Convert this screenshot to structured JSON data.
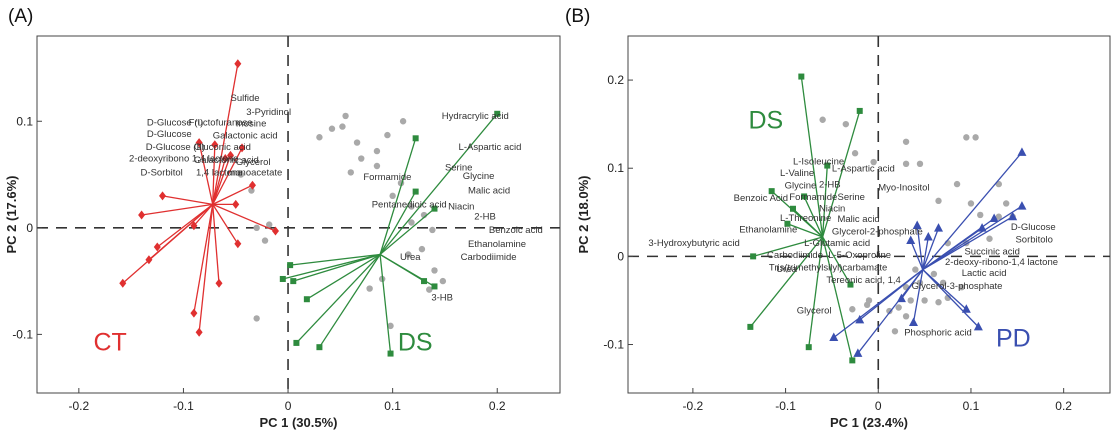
{
  "chart_data": [
    {
      "type": "scatter",
      "panel": "(A)",
      "xlabel": "PC 1 (30.5%)",
      "ylabel": "PC 2 (17.6%)",
      "xlim": [
        -0.24,
        0.26
      ],
      "ylim": [
        -0.155,
        0.18
      ],
      "xticks": [
        "-0.2",
        "-0.1",
        "0",
        "0.1",
        "0.2"
      ],
      "xtick_values": [
        -0.2,
        -0.1,
        0,
        0.1,
        0.2
      ],
      "yticks": [
        "0.1",
        "0",
        "-0.1"
      ],
      "ytick_values": [
        0.1,
        0,
        -0.1
      ],
      "reference_lines": "dashed at x=0 and y=0",
      "groups": [
        {
          "label": "CT",
          "color": "#e03030",
          "marker": "diamond",
          "centroid": [
            -0.072,
            0.022
          ],
          "points": [
            [
              -0.048,
              0.154
            ],
            [
              -0.085,
              0.08
            ],
            [
              -0.06,
              0.065
            ],
            [
              -0.044,
              0.075
            ],
            [
              -0.055,
              0.068
            ],
            [
              -0.07,
              0.078
            ],
            [
              -0.034,
              0.04
            ],
            [
              -0.05,
              0.022
            ],
            [
              -0.012,
              -0.003
            ],
            [
              -0.12,
              0.03
            ],
            [
              -0.14,
              0.012
            ],
            [
              -0.133,
              -0.03
            ],
            [
              -0.158,
              -0.052
            ],
            [
              -0.125,
              -0.018
            ],
            [
              -0.09,
              -0.08
            ],
            [
              -0.085,
              -0.098
            ],
            [
              -0.066,
              -0.052
            ],
            [
              -0.048,
              -0.015
            ],
            [
              -0.09,
              0.002
            ]
          ]
        },
        {
          "label": "DS",
          "color": "#2e8b3e",
          "marker": "square",
          "centroid": [
            0.088,
            -0.025
          ],
          "points": [
            [
              0.2,
              0.107
            ],
            [
              0.122,
              0.084
            ],
            [
              0.122,
              0.034
            ],
            [
              0.14,
              0.018
            ],
            [
              0.14,
              -0.055
            ],
            [
              0.13,
              -0.05
            ],
            [
              0.098,
              -0.118
            ],
            [
              0.03,
              -0.112
            ],
            [
              0.008,
              -0.108
            ],
            [
              0.018,
              -0.067
            ],
            [
              0.005,
              -0.05
            ],
            [
              -0.005,
              -0.048
            ],
            [
              0.002,
              -0.035
            ]
          ]
        }
      ],
      "observations_grey": [
        [
          0.03,
          0.085
        ],
        [
          0.042,
          0.093
        ],
        [
          0.055,
          0.105
        ],
        [
          0.066,
          0.08
        ],
        [
          0.085,
          0.072
        ],
        [
          0.07,
          0.065
        ],
        [
          0.052,
          0.095
        ],
        [
          0.095,
          0.087
        ],
        [
          0.11,
          0.1
        ],
        [
          0.085,
          0.058
        ],
        [
          0.06,
          0.052
        ],
        [
          0.1,
          0.03
        ],
        [
          0.108,
          0.042
        ],
        [
          0.118,
          0.02
        ],
        [
          0.118,
          0.005
        ],
        [
          0.13,
          0.012
        ],
        [
          0.138,
          -0.002
        ],
        [
          0.128,
          -0.02
        ],
        [
          0.115,
          -0.025
        ],
        [
          0.14,
          -0.04
        ],
        [
          0.148,
          -0.05
        ],
        [
          0.135,
          -0.058
        ],
        [
          0.09,
          -0.048
        ],
        [
          0.078,
          -0.057
        ],
        [
          0.098,
          -0.092
        ],
        [
          -0.03,
          0.0
        ],
        [
          -0.018,
          0.003
        ],
        [
          -0.022,
          -0.012
        ],
        [
          -0.035,
          0.035
        ],
        [
          -0.03,
          -0.085
        ],
        [
          -0.045,
          0.05
        ]
      ],
      "annotations": [
        {
          "text": "Sulfide",
          "x": -0.055,
          "y": 0.119
        },
        {
          "text": "3-Pyridinol",
          "x": -0.04,
          "y": 0.106
        },
        {
          "text": "D-Glucose (I)",
          "x": -0.135,
          "y": 0.096
        },
        {
          "text": "Fructofuranose",
          "x": -0.095,
          "y": 0.096
        },
        {
          "text": "Inosine",
          "x": -0.05,
          "y": 0.095
        },
        {
          "text": "D-Glucose",
          "x": -0.135,
          "y": 0.085
        },
        {
          "text": "D-Glucose (II)",
          "x": -0.136,
          "y": 0.073
        },
        {
          "text": "Gluconic acid",
          "x": -0.09,
          "y": 0.073
        },
        {
          "text": "Galactonic acid",
          "x": -0.072,
          "y": 0.084
        },
        {
          "text": "2-deoxyribono 1,4 lactone",
          "x": -0.152,
          "y": 0.062
        },
        {
          "text": "Galactonic acid",
          "x": -0.09,
          "y": 0.061
        },
        {
          "text": "Glycerol",
          "x": -0.05,
          "y": 0.059
        },
        {
          "text": "D-Sorbitol",
          "x": -0.141,
          "y": 0.049
        },
        {
          "text": "1,4 lactone",
          "x": -0.088,
          "y": 0.049
        },
        {
          "text": "monoacetate",
          "x": -0.058,
          "y": 0.049
        },
        {
          "text": "Hydracrylic acid",
          "x": 0.147,
          "y": 0.102
        },
        {
          "text": "L-Aspartic acid",
          "x": 0.163,
          "y": 0.073
        },
        {
          "text": "Serine",
          "x": 0.15,
          "y": 0.054
        },
        {
          "text": "Glycine",
          "x": 0.167,
          "y": 0.046
        },
        {
          "text": "Formamide",
          "x": 0.072,
          "y": 0.045
        },
        {
          "text": "Malic acid",
          "x": 0.172,
          "y": 0.032
        },
        {
          "text": "Pentanedioic acid",
          "x": 0.08,
          "y": 0.019
        },
        {
          "text": "Niacin",
          "x": 0.153,
          "y": 0.017
        },
        {
          "text": "2-HB",
          "x": 0.178,
          "y": 0.008
        },
        {
          "text": "Benzoic acid",
          "x": 0.192,
          "y": -0.005
        },
        {
          "text": "Ethanolamine",
          "x": 0.172,
          "y": -0.018
        },
        {
          "text": "Urea",
          "x": 0.107,
          "y": -0.03
        },
        {
          "text": "Carbodiimide",
          "x": 0.165,
          "y": -0.03
        },
        {
          "text": "3-HB",
          "x": 0.137,
          "y": -0.068
        }
      ],
      "group_labels": [
        {
          "text": "CT",
          "x": -0.186,
          "y": -0.115
        },
        {
          "text": "DS",
          "x": 0.105,
          "y": -0.115
        }
      ]
    },
    {
      "type": "scatter",
      "panel": "(B)",
      "xlabel": "PC 1 (23.4%)",
      "ylabel": "PC 2 (18.0%)",
      "xlim": [
        -0.27,
        0.25
      ],
      "ylim": [
        -0.155,
        0.25
      ],
      "xticks": [
        "-0.2",
        "-0.1",
        "0",
        "0.1",
        "0.2"
      ],
      "xtick_values": [
        -0.2,
        -0.1,
        0,
        0.1,
        0.2
      ],
      "yticks": [
        "0.2",
        "0.1",
        "0",
        "-0.1"
      ],
      "ytick_values": [
        0.2,
        0.1,
        0,
        -0.1
      ],
      "reference_lines": "dashed at x=0 and y=0",
      "groups": [
        {
          "label": "DS",
          "color": "#2e8b3e",
          "marker": "square",
          "centroid": [
            -0.06,
            0.022
          ],
          "points": [
            [
              -0.083,
              0.204
            ],
            [
              -0.02,
              0.165
            ],
            [
              -0.055,
              0.103
            ],
            [
              -0.115,
              0.074
            ],
            [
              -0.08,
              0.068
            ],
            [
              -0.092,
              0.054
            ],
            [
              -0.098,
              0.037
            ],
            [
              -0.135,
              0.0
            ],
            [
              -0.138,
              -0.08
            ],
            [
              -0.075,
              -0.103
            ],
            [
              -0.028,
              -0.118
            ],
            [
              -0.03,
              -0.032
            ]
          ]
        },
        {
          "label": "PD",
          "color": "#3a4fb0",
          "marker": "triangle",
          "centroid": [
            0.048,
            -0.015
          ],
          "points": [
            [
              0.155,
              0.118
            ],
            [
              0.155,
              0.057
            ],
            [
              0.125,
              0.043
            ],
            [
              0.145,
              0.045
            ],
            [
              0.112,
              0.032
            ],
            [
              0.065,
              0.032
            ],
            [
              0.054,
              0.022
            ],
            [
              0.035,
              0.018
            ],
            [
              0.042,
              0.035
            ],
            [
              0.095,
              -0.06
            ],
            [
              0.108,
              -0.08
            ],
            [
              0.038,
              -0.075
            ],
            [
              0.025,
              -0.048
            ],
            [
              -0.02,
              -0.072
            ],
            [
              -0.022,
              -0.11
            ],
            [
              -0.048,
              -0.092
            ]
          ]
        }
      ],
      "observations_grey": [
        [
          -0.06,
          0.155
        ],
        [
          -0.035,
          0.15
        ],
        [
          -0.025,
          0.117
        ],
        [
          -0.005,
          0.107
        ],
        [
          0.03,
          0.105
        ],
        [
          0.03,
          0.13
        ],
        [
          0.045,
          0.105
        ],
        [
          0.085,
          0.082
        ],
        [
          0.095,
          0.135
        ],
        [
          0.105,
          0.135
        ],
        [
          0.065,
          0.063
        ],
        [
          0.1,
          0.06
        ],
        [
          0.11,
          0.047
        ],
        [
          0.13,
          0.082
        ],
        [
          0.138,
          0.06
        ],
        [
          0.13,
          0.045
        ],
        [
          0.145,
          0.045
        ],
        [
          0.12,
          0.02
        ],
        [
          0.095,
          0.015
        ],
        [
          0.075,
          0.015
        ],
        [
          0.04,
          -0.015
        ],
        [
          0.06,
          -0.02
        ],
        [
          0.07,
          -0.03
        ],
        [
          0.09,
          -0.035
        ],
        [
          0.075,
          -0.047
        ],
        [
          0.065,
          -0.052
        ],
        [
          0.05,
          -0.05
        ],
        [
          0.035,
          -0.05
        ],
        [
          0.022,
          -0.058
        ],
        [
          0.012,
          -0.062
        ],
        [
          0.03,
          -0.068
        ],
        [
          0.018,
          -0.085
        ],
        [
          -0.012,
          -0.055
        ],
        [
          -0.028,
          -0.06
        ],
        [
          -0.01,
          -0.05
        ],
        [
          0.03,
          -0.035
        ],
        [
          0.045,
          -0.03
        ]
      ],
      "annotations": [
        {
          "text": "L-Isoleucine",
          "x": -0.092,
          "y": 0.104
        },
        {
          "text": "L-Aspartic acid",
          "x": -0.05,
          "y": 0.096
        },
        {
          "text": "L-Valine",
          "x": -0.106,
          "y": 0.091
        },
        {
          "text": "Glycine",
          "x": -0.101,
          "y": 0.077
        },
        {
          "text": "2-HB",
          "x": -0.064,
          "y": 0.078
        },
        {
          "text": "Myo-Inositol",
          "x": 0.0,
          "y": 0.075
        },
        {
          "text": "Formamide",
          "x": -0.096,
          "y": 0.064
        },
        {
          "text": "Benzoic Acid",
          "x": -0.156,
          "y": 0.063
        },
        {
          "text": "Serine",
          "x": -0.044,
          "y": 0.064
        },
        {
          "text": "Niacin",
          "x": -0.064,
          "y": 0.051
        },
        {
          "text": "Malic acid",
          "x": -0.044,
          "y": 0.039
        },
        {
          "text": "L-Threonine",
          "x": -0.106,
          "y": 0.04
        },
        {
          "text": "Glycerol-2-phosphate",
          "x": -0.05,
          "y": 0.025
        },
        {
          "text": "Ethanolamine",
          "x": -0.15,
          "y": 0.027
        },
        {
          "text": "L-Glutamic acid",
          "x": -0.08,
          "y": 0.012
        },
        {
          "text": "Urea",
          "x": -0.11,
          "y": -0.018
        },
        {
          "text": "3-Hydroxybutyric acid",
          "x": -0.248,
          "y": 0.012
        },
        {
          "text": "Carbodiimide",
          "x": -0.12,
          "y": -0.002
        },
        {
          "text": "L-5-Oxoproline",
          "x": -0.054,
          "y": -0.002
        },
        {
          "text": "Tris(trimethylsilyl)carbamate",
          "x": -0.118,
          "y": -0.016
        },
        {
          "text": "Tereonic acid, 1,4",
          "x": -0.056,
          "y": -0.03
        },
        {
          "text": "Glycerol",
          "x": -0.088,
          "y": -0.065
        },
        {
          "text": "D-Glucose",
          "x": 0.143,
          "y": 0.03
        },
        {
          "text": "Sorbitolo",
          "x": 0.148,
          "y": 0.016
        },
        {
          "text": "Succinic acid",
          "x": 0.093,
          "y": 0.002
        },
        {
          "text": "2-deoxy-ribono-1,4 lactone",
          "x": 0.072,
          "y": -0.01
        },
        {
          "text": "Lactic acid",
          "x": 0.09,
          "y": -0.022
        },
        {
          "text": "Glycerol-3-phosphate",
          "x": 0.036,
          "y": -0.037
        },
        {
          "text": "Phosphoric acid",
          "x": 0.028,
          "y": -0.09
        }
      ],
      "group_labels": [
        {
          "text": "DS",
          "x": -0.14,
          "y": 0.145
        },
        {
          "text": "PD",
          "x": 0.127,
          "y": -0.102
        }
      ]
    }
  ]
}
